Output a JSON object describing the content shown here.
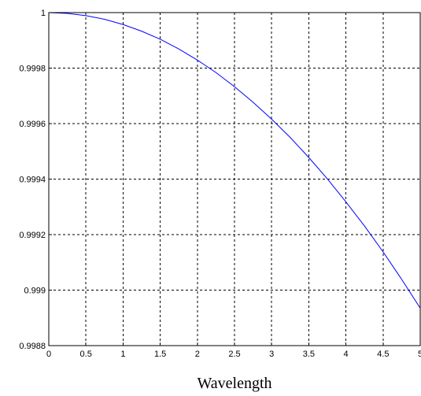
{
  "chart_data": {
    "type": "line",
    "title": "",
    "xlabel": "Wavelength",
    "ylabel": "",
    "xlim": [
      0,
      5
    ],
    "ylim": [
      0.9988,
      1
    ],
    "grid": true,
    "x_ticks": [
      0,
      0.5,
      1,
      1.5,
      2,
      2.5,
      3,
      3.5,
      4,
      4.5,
      5
    ],
    "x_tick_labels": [
      "0",
      "0.5",
      "1",
      "1.5",
      "2",
      "2.5",
      "3",
      "3.5",
      "4",
      "4.5",
      "5"
    ],
    "y_ticks": [
      0.9988,
      0.999,
      0.9992,
      0.9994,
      0.9996,
      0.9998,
      1
    ],
    "y_tick_labels": [
      "0.9988",
      "0.999",
      "0.9992",
      "0.9994",
      "0.9996",
      "0.9998",
      "1"
    ],
    "series": [
      {
        "color": "#0000ff",
        "x": [
          0,
          0.25,
          0.5,
          0.75,
          1,
          1.25,
          1.5,
          1.75,
          2,
          2.25,
          2.5,
          2.75,
          3,
          3.25,
          3.5,
          3.75,
          4,
          4.25,
          4.5,
          4.75,
          5
        ],
        "y": [
          1,
          0.999997,
          0.999989,
          0.999976,
          0.999957,
          0.999933,
          0.999904,
          0.999869,
          0.999829,
          0.999784,
          0.999733,
          0.999677,
          0.999616,
          0.99955,
          0.999478,
          0.999401,
          0.999318,
          0.999231,
          0.999138,
          0.999039,
          0.998935
        ]
      }
    ]
  }
}
